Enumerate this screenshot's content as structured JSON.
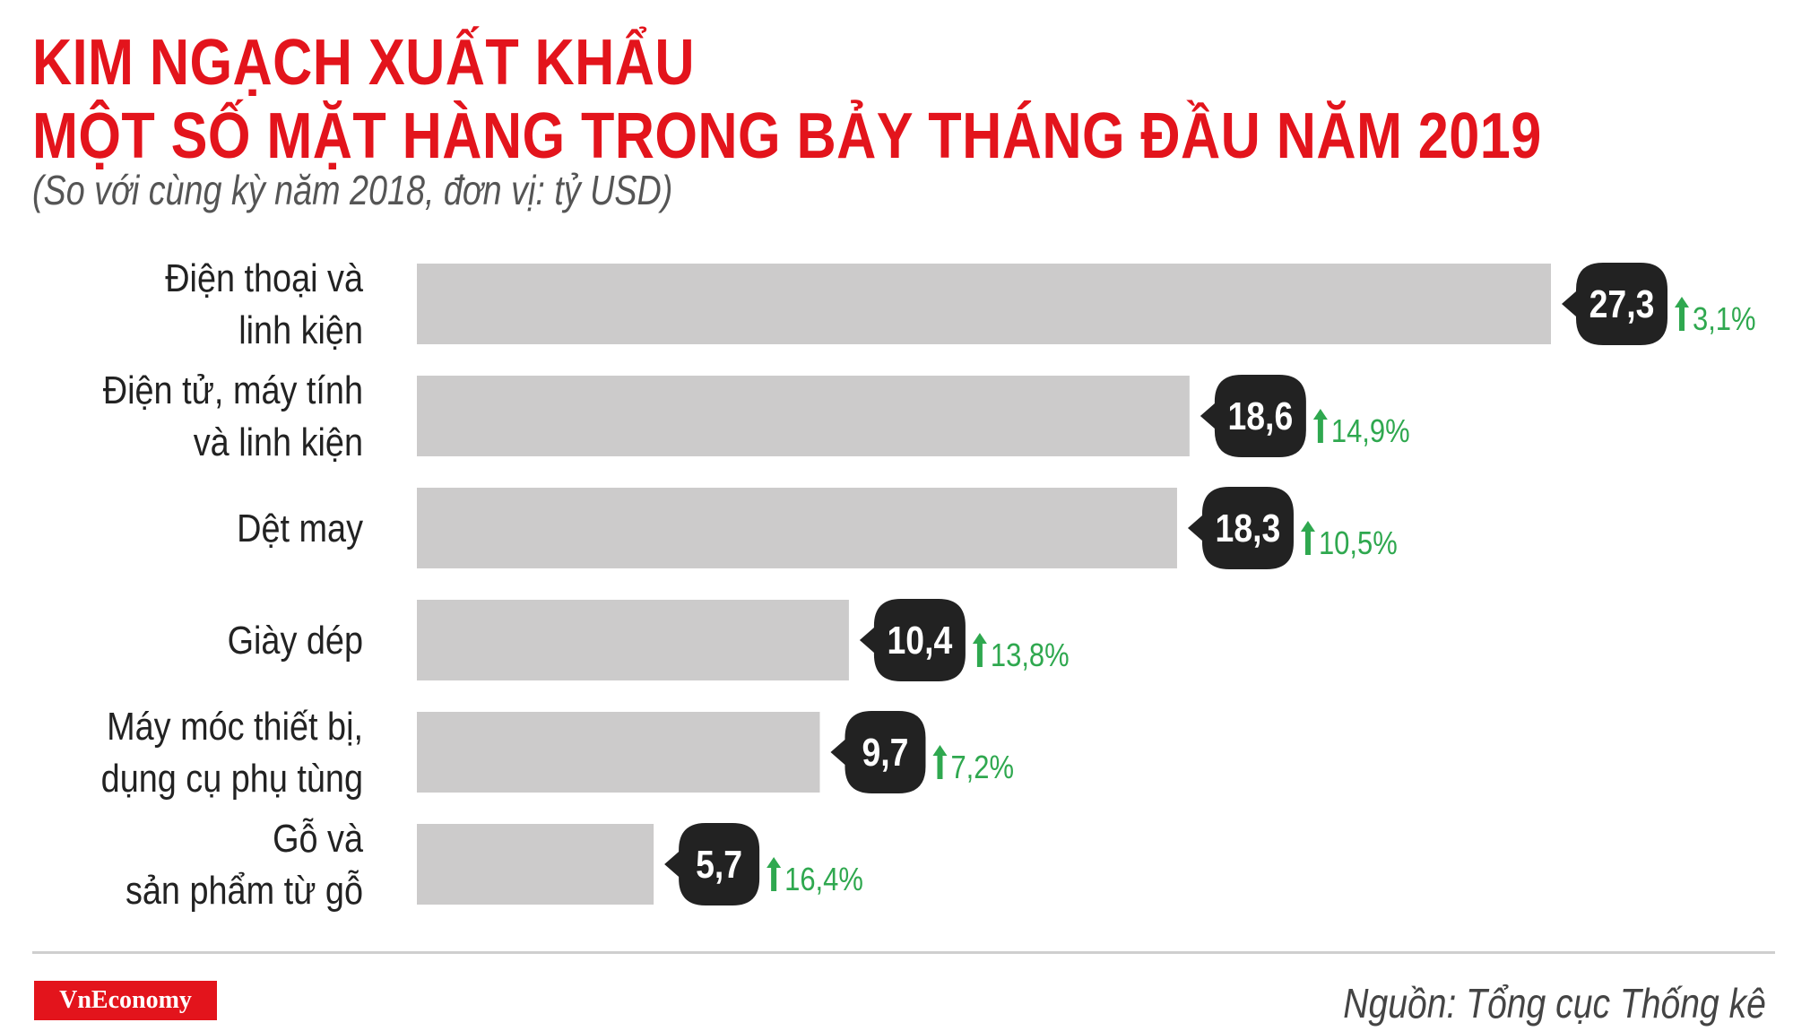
{
  "chart_data": {
    "type": "bar",
    "orientation": "horizontal",
    "title": "KIM NGẠCH XUẤT KHẨU",
    "title_line2": "MỘT SỐ MẶT HÀNG TRONG BẢY THÁNG ĐẦU NĂM 2019",
    "subtitle": "(So với cùng kỳ năm 2018, đơn vị: tỷ USD)",
    "categories": [
      [
        "Điện thoại và",
        "linh kiện"
      ],
      [
        "Điện tử, máy tính",
        "và linh kiện"
      ],
      [
        "Dệt may"
      ],
      [
        "Giày dép"
      ],
      [
        "Máy móc thiết bị,",
        "dụng cụ phụ tùng"
      ],
      [
        "Gỗ và",
        "sản phẩm từ gỗ"
      ]
    ],
    "values": [
      27.3,
      18.6,
      18.3,
      10.4,
      9.7,
      5.7
    ],
    "value_labels": [
      "27,3",
      "18,6",
      "18,3",
      "10,4",
      "9,7",
      "5,7"
    ],
    "changes": [
      "3,1%",
      "14,9%",
      "10,5%",
      "13,8%",
      "7,2%",
      "16,4%"
    ],
    "change_direction": "up",
    "xlim": [
      0,
      27.3
    ],
    "grid": false,
    "legend": "none"
  },
  "colors": {
    "title": "#e3141c",
    "bar": "#cccbcb",
    "value_bubble": "#222222",
    "change": "#2fa84f"
  },
  "footer": {
    "logo": "VnEconomy",
    "source": "Nguồn: Tổng cục Thống kê"
  }
}
